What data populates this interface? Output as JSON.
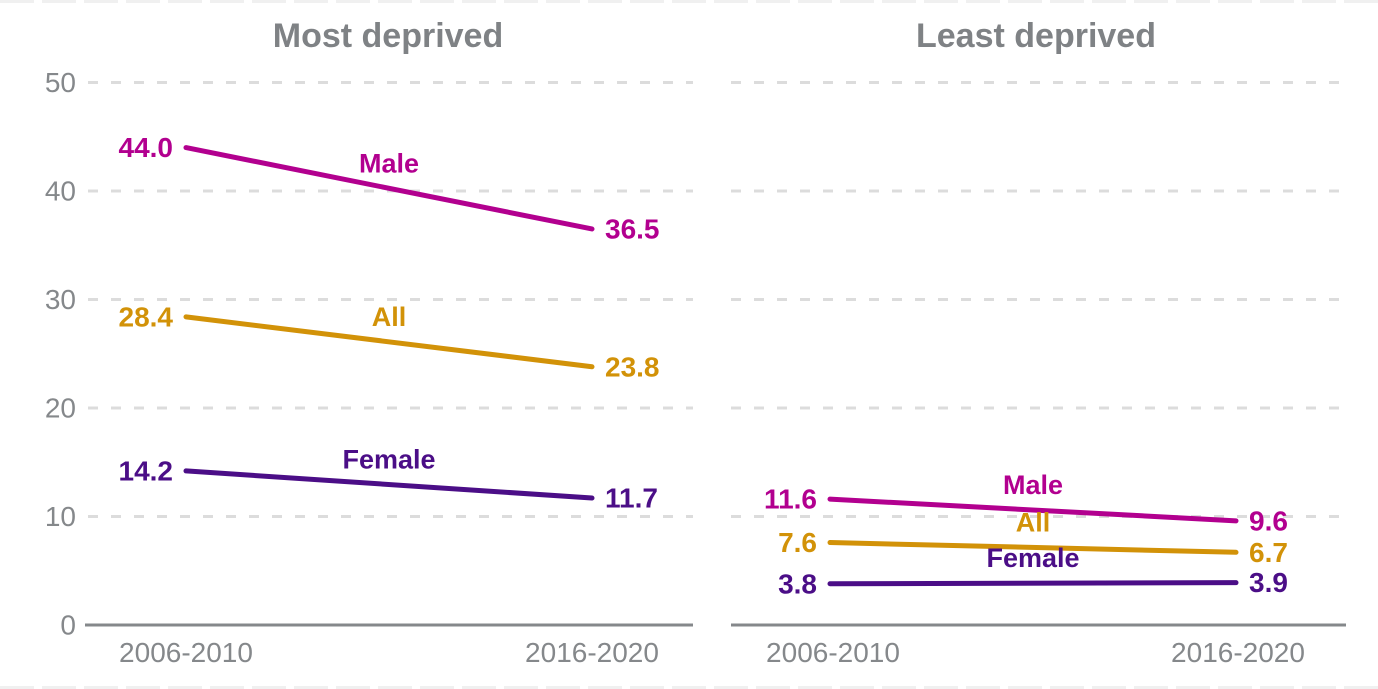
{
  "page": {
    "background": "#ffffff"
  },
  "chart_data": {
    "type": "line",
    "layout_hints": {
      "grid": "dashed-horizontal",
      "legend_position": "inline-labels-above-lines",
      "y_tick_labels_panel": "left-only",
      "value_labels": "both-line-ends",
      "series_label_dy": -16
    },
    "colors": {
      "male": "#b2008f",
      "all": "#d29208",
      "female": "#4b0e87",
      "axis_text": "#85888b",
      "axis_line": "#85888b",
      "grid_line": "#dcdcdc",
      "title_text": "#7f8285",
      "crop_edge": "#f0f0f0"
    },
    "y_axis": {
      "range": [
        0,
        50
      ],
      "ticks": [
        0,
        10,
        20,
        30,
        40,
        50
      ]
    },
    "panels": [
      {
        "title": "Most deprived",
        "x_labels": [
          "2006-2010",
          "2016-2020"
        ],
        "series": [
          {
            "name": "Male",
            "color_key": "male",
            "values": [
              44.0,
              36.5
            ]
          },
          {
            "name": "All",
            "color_key": "all",
            "values": [
              28.4,
              23.8
            ]
          },
          {
            "name": "Female",
            "color_key": "female",
            "values": [
              14.2,
              11.7
            ]
          }
        ]
      },
      {
        "title": "Least deprived",
        "x_labels": [
          "2006-2010",
          "2016-2020"
        ],
        "series": [
          {
            "name": "Male",
            "color_key": "male",
            "values": [
              11.6,
              9.6
            ]
          },
          {
            "name": "All",
            "color_key": "all",
            "values": [
              7.6,
              6.7
            ]
          },
          {
            "name": "Female",
            "color_key": "female",
            "values": [
              3.8,
              3.9
            ]
          }
        ]
      }
    ]
  }
}
